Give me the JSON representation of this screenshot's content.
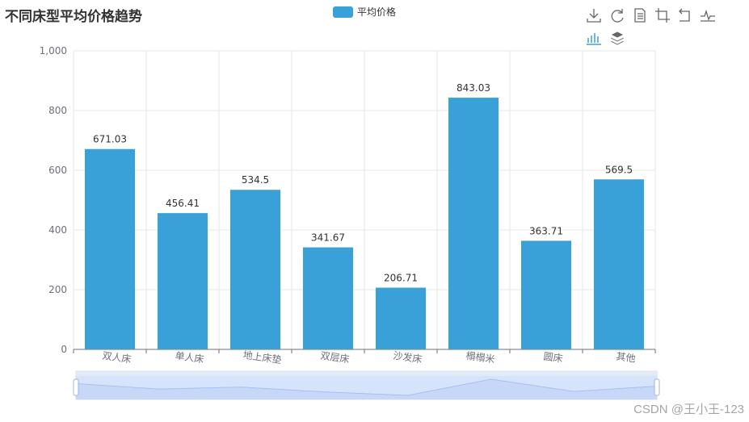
{
  "chart_data": {
    "type": "bar",
    "title": "不同床型平均价格趋势",
    "legend": [
      "平均价格"
    ],
    "categories": [
      "双人床",
      "单人床",
      "地上床垫",
      "双层床",
      "沙发床",
      "榻榻米",
      "圆床",
      "其他"
    ],
    "series": [
      {
        "name": "平均价格",
        "values": [
          671.03,
          456.41,
          534.5,
          341.67,
          206.71,
          843.03,
          363.71,
          569.5
        ]
      }
    ],
    "value_labels": [
      "671.03",
      "456.41",
      "534.5",
      "341.67",
      "206.71",
      "843.03",
      "363.71",
      "569.5"
    ],
    "ylim": [
      0,
      1000
    ],
    "yticks": [
      "0",
      "200",
      "400",
      "600",
      "800",
      "1,000"
    ],
    "xlabel": "",
    "ylabel": "",
    "grid": true,
    "legend_position": "top-center",
    "colors": {
      "bar": "#3aa0d8",
      "grid": "#e6e6e6",
      "axis": "#6e7079",
      "slider": "#d6e4fb"
    },
    "datazoom": {
      "start": 0,
      "end": 100
    }
  },
  "toolbox": {
    "icons": [
      "download-icon",
      "restore-icon",
      "data-view-icon",
      "zoom-icon",
      "zoom-reset-icon",
      "line-switch-icon",
      "bar-switch-icon",
      "stack-switch-icon"
    ]
  },
  "watermark": "CSDN @王小王-123"
}
